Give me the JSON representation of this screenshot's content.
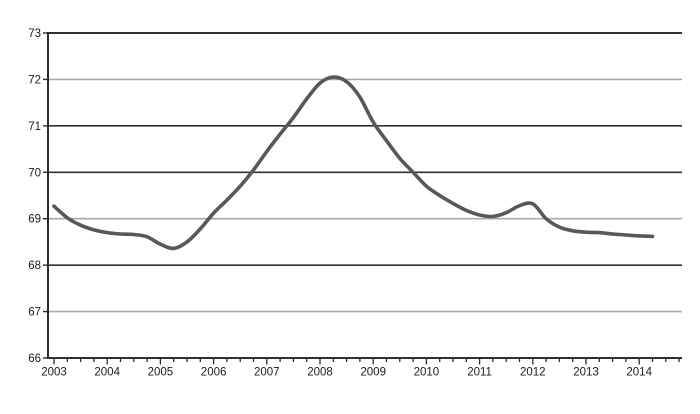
{
  "page": {
    "background_color": "#ffffff"
  },
  "chart_data": {
    "type": "line",
    "title": "",
    "xlabel": "",
    "ylabel": "",
    "legend": "none",
    "x_axis": {
      "min": 2003,
      "max": 2014.75,
      "tick_years": [
        "2003",
        "2004",
        "2005",
        "2006",
        "2007",
        "2008",
        "2009",
        "2010",
        "2011",
        "2012",
        "2013",
        "2014"
      ],
      "minor_tick_interval_years": 0.25
    },
    "y_axis": {
      "min": 66,
      "max": 73,
      "tick_values": [
        66,
        67,
        68,
        69,
        70,
        71,
        72,
        73
      ]
    },
    "gridlines": {
      "dark_values": [
        73,
        71,
        70,
        68,
        66
      ],
      "light_values": [
        72,
        69,
        67
      ]
    },
    "series": [
      {
        "name": "main-series",
        "x": [
          2003.0,
          2003.25,
          2003.5,
          2003.75,
          2004.0,
          2004.25,
          2004.5,
          2004.75,
          2005.0,
          2005.25,
          2005.5,
          2005.75,
          2006.0,
          2006.25,
          2006.5,
          2006.75,
          2007.0,
          2007.25,
          2007.5,
          2007.75,
          2008.0,
          2008.25,
          2008.5,
          2008.75,
          2009.0,
          2009.25,
          2009.5,
          2009.75,
          2010.0,
          2010.25,
          2010.5,
          2010.75,
          2011.0,
          2011.25,
          2011.5,
          2011.75,
          2012.0,
          2012.25,
          2012.5,
          2012.75,
          2013.0,
          2013.25,
          2013.5,
          2013.75,
          2014.0,
          2014.25
        ],
        "values": [
          69.27,
          69.02,
          68.86,
          68.76,
          68.7,
          68.67,
          68.66,
          68.61,
          68.45,
          68.36,
          68.5,
          68.78,
          69.12,
          69.4,
          69.7,
          70.05,
          70.45,
          70.82,
          71.18,
          71.58,
          71.92,
          72.05,
          71.95,
          71.62,
          71.08,
          70.68,
          70.3,
          70.0,
          69.7,
          69.5,
          69.33,
          69.18,
          69.08,
          69.05,
          69.13,
          69.28,
          69.32,
          69.0,
          68.82,
          68.74,
          68.71,
          68.7,
          68.67,
          68.65,
          68.63,
          68.62
        ]
      }
    ],
    "colors": {
      "line": "#585858",
      "grid_dark": "#303030",
      "grid_light": "#a9a9a9",
      "axis": "#2b2b2b",
      "text": "#1c1c1c",
      "background": "#ffffff"
    }
  }
}
